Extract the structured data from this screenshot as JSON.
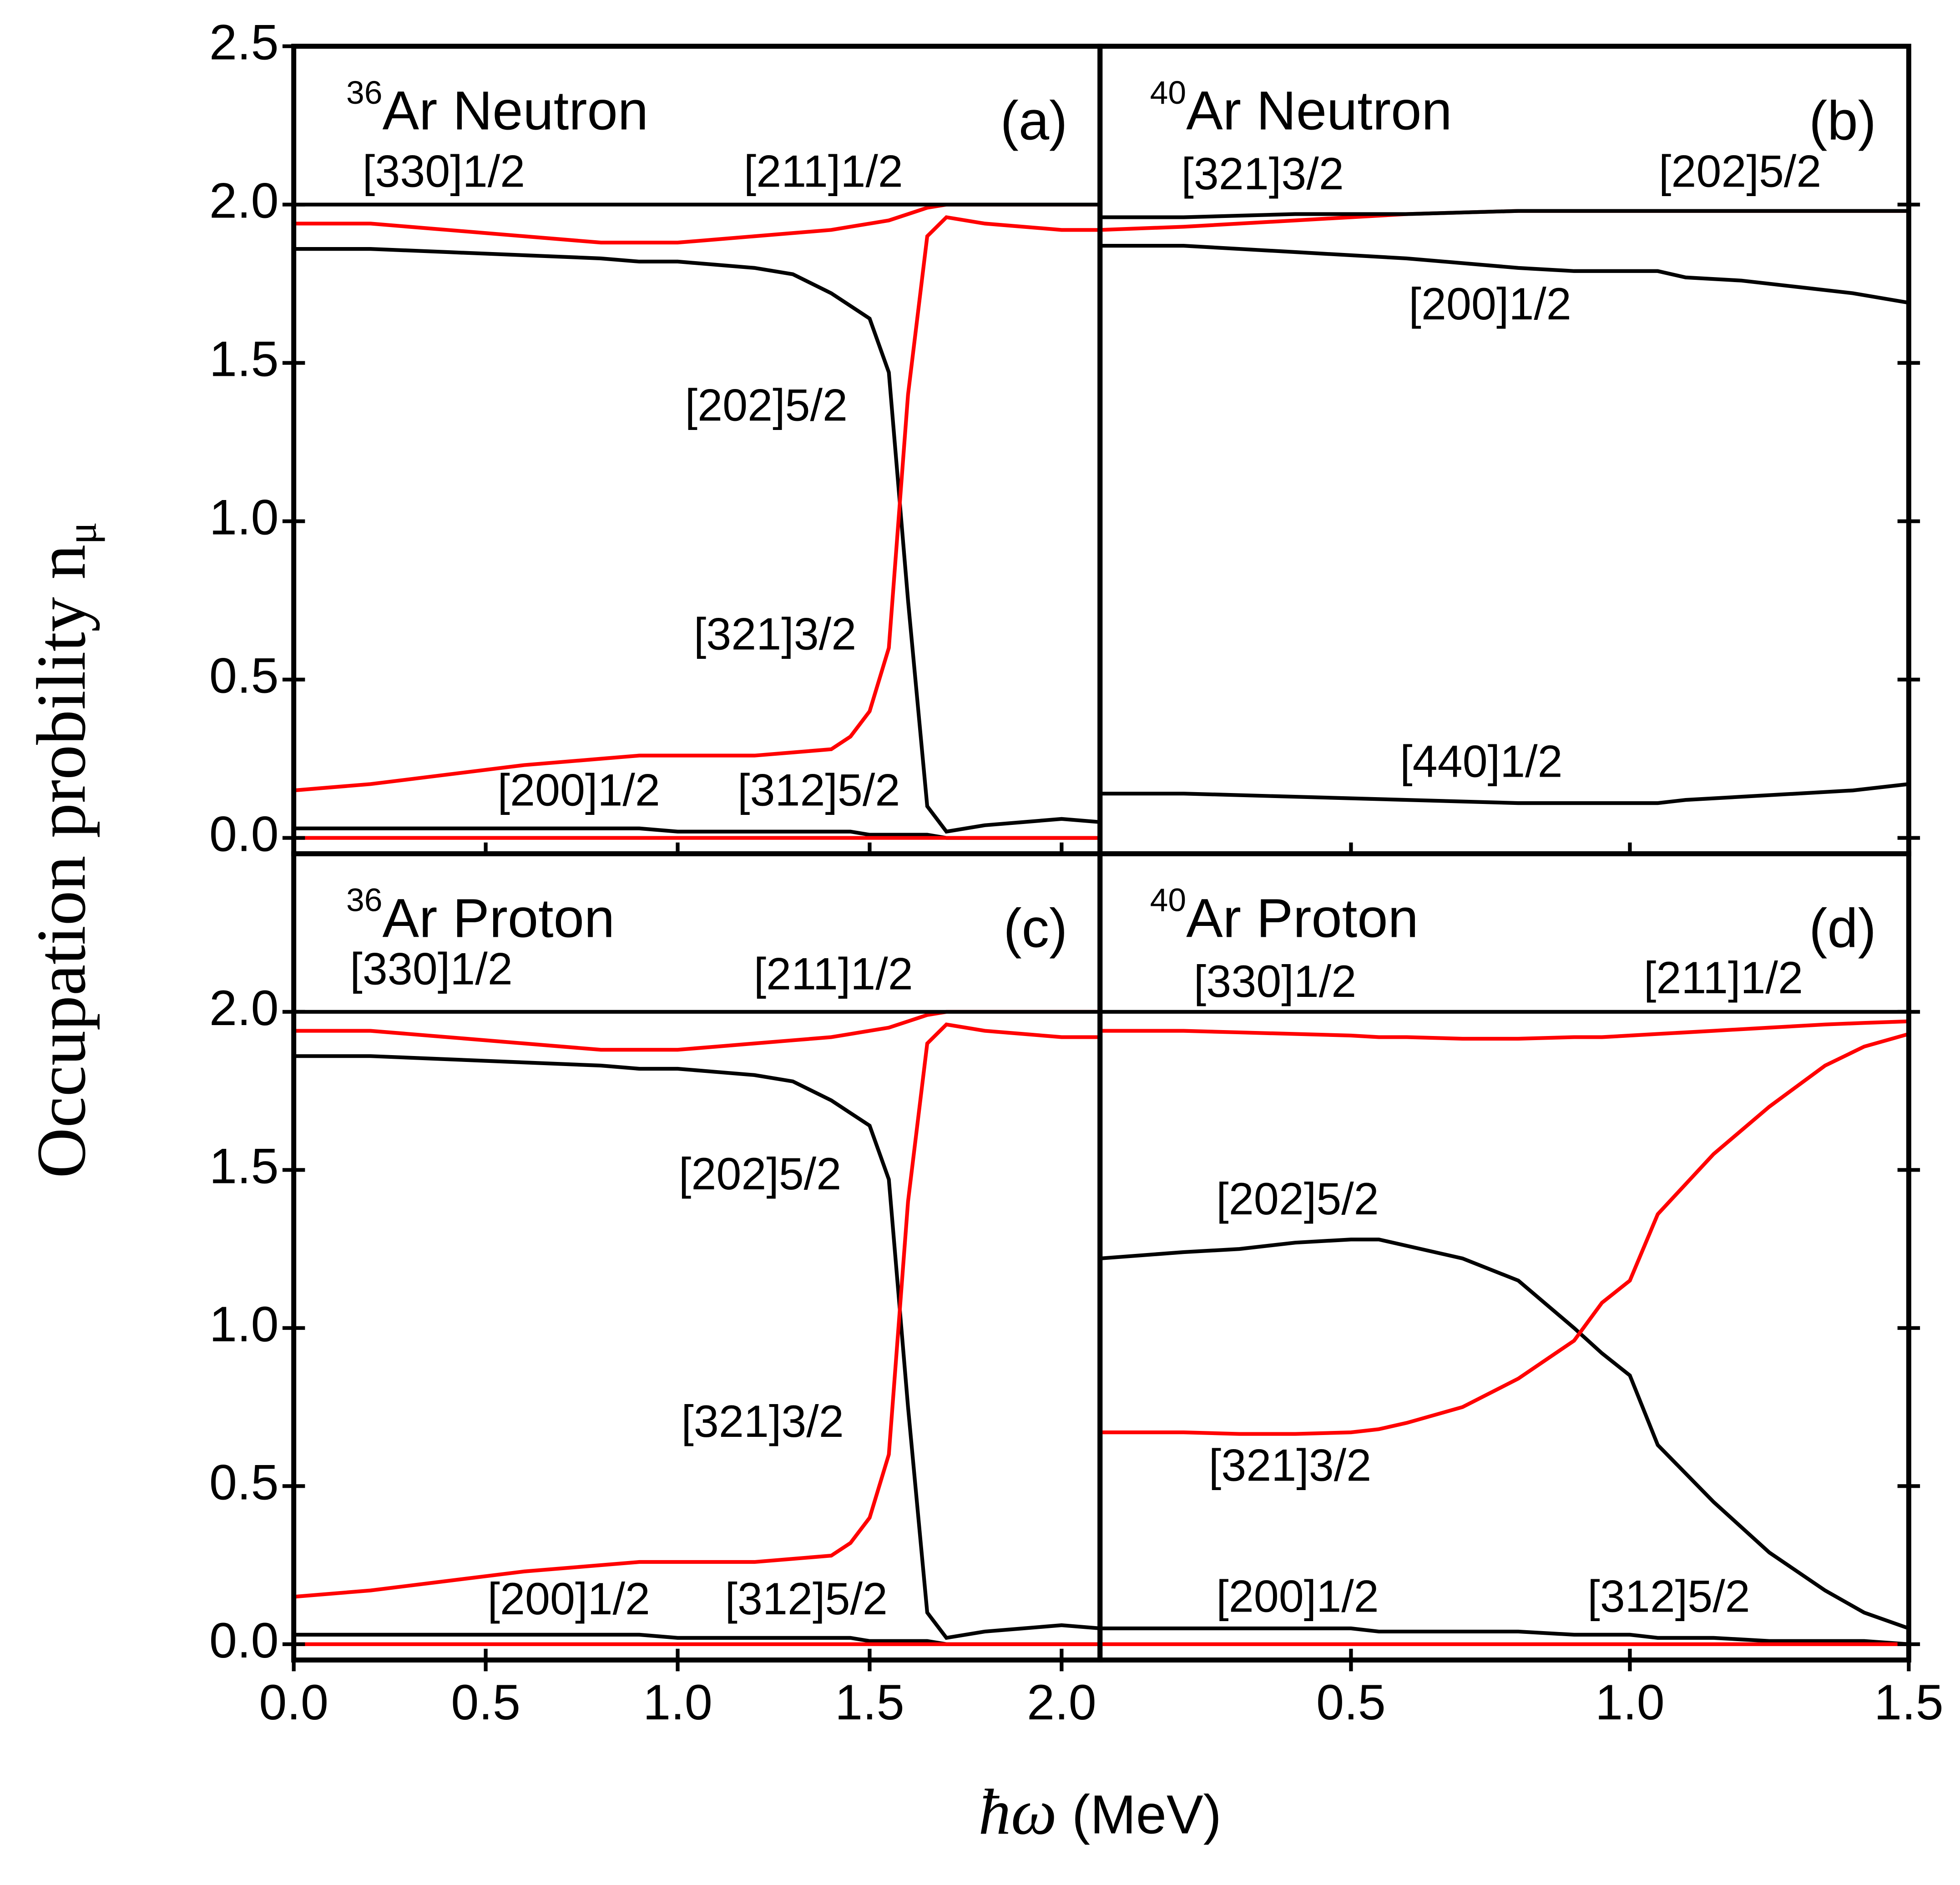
{
  "ylabel": "Occupation probility n",
  "ylabel_sub": "μ",
  "xlabel_symbol": "ħω",
  "xlabel_unit": "(MeV)",
  "chart_data": [
    {
      "type": "line",
      "title_sup": "36",
      "title": "Ar Neutron",
      "panel": "(a)",
      "xlim": [
        0,
        2.1
      ],
      "ylim": [
        -0.05,
        2.5
      ],
      "xticks": [
        0,
        0.5,
        1,
        1.5,
        2
      ],
      "yticks": [
        {
          "value": 0,
          "label": "0.0"
        },
        {
          "value": 0.5,
          "label": "0.5"
        },
        {
          "value": 1,
          "label": "1.0"
        },
        {
          "value": 1.5,
          "label": "1.5"
        },
        {
          "value": 2,
          "label": "2.0"
        },
        {
          "value": 2.5,
          "label": "2.5"
        }
      ],
      "x": [
        0,
        0.2,
        0.4,
        0.6,
        0.8,
        0.9,
        1.0,
        1.1,
        1.2,
        1.3,
        1.4,
        1.45,
        1.5,
        1.55,
        1.6,
        1.65,
        1.7,
        1.8,
        1.9,
        2.0,
        2.1
      ],
      "series": [
        {
          "name": "[330]1/2",
          "color": "#ff0000",
          "values": [
            1.94,
            1.94,
            1.92,
            1.9,
            1.88,
            1.88,
            1.88,
            1.89,
            1.9,
            1.91,
            1.92,
            1.93,
            1.94,
            1.95,
            1.97,
            1.99,
            2.0,
            2.0,
            2.0,
            2.0,
            2.0
          ]
        },
        {
          "name": "[211]1/2",
          "color": "#000000",
          "values": [
            2.0,
            2.0,
            2.0,
            2.0,
            2.0,
            2.0,
            2.0,
            2.0,
            2.0,
            2.0,
            2.0,
            2.0,
            2.0,
            2.0,
            2.0,
            2.0,
            2.0,
            2.0,
            2.0,
            2.0,
            2.0
          ]
        },
        {
          "name": "[202]5/2",
          "color": "#000000",
          "values": [
            1.86,
            1.86,
            1.85,
            1.84,
            1.83,
            1.82,
            1.82,
            1.81,
            1.8,
            1.78,
            1.72,
            1.68,
            1.64,
            1.47,
            0.75,
            0.1,
            0.02,
            0.04,
            0.05,
            0.06,
            0.05
          ]
        },
        {
          "name": "[321]3/2",
          "color": "#ff0000",
          "values": [
            0.15,
            0.17,
            0.2,
            0.23,
            0.25,
            0.26,
            0.26,
            0.26,
            0.26,
            0.27,
            0.28,
            0.32,
            0.4,
            0.6,
            1.4,
            1.9,
            1.96,
            1.94,
            1.93,
            1.92,
            1.92
          ]
        },
        {
          "name": "[200]1/2",
          "color": "#000000",
          "values": [
            0.03,
            0.03,
            0.03,
            0.03,
            0.03,
            0.03,
            0.02,
            0.02,
            0.02,
            0.02,
            0.02,
            0.02,
            0.01,
            0.01,
            0.01,
            0.01,
            0.0,
            0.0,
            0.0,
            0.0,
            0.0
          ]
        },
        {
          "name": "[312]5/2",
          "color": "#ff0000",
          "values": [
            0.0,
            0.0,
            0.0,
            0.0,
            0.0,
            0.0,
            0.0,
            0.0,
            0.0,
            0.0,
            0.0,
            0.0,
            0.0,
            0.0,
            0.0,
            0.0,
            0.0,
            0.0,
            0.0,
            0.0,
            0.0
          ]
        }
      ]
    },
    {
      "type": "line",
      "title_sup": "40",
      "title": "Ar Neutron",
      "panel": "(b)",
      "xlim": [
        0.05,
        1.5
      ],
      "ylim": [
        -0.05,
        2.5
      ],
      "xticks": [
        0.5,
        1,
        1.5
      ],
      "yticks": [
        0,
        0.5,
        1,
        1.5,
        2
      ],
      "x": [
        0.05,
        0.2,
        0.4,
        0.6,
        0.8,
        0.9,
        1.0,
        1.05,
        1.1,
        1.2,
        1.3,
        1.4,
        1.5
      ],
      "series": [
        {
          "name": "[321]3/2",
          "color": "#ff0000",
          "values": [
            1.92,
            1.93,
            1.95,
            1.97,
            1.98,
            1.98,
            1.98,
            1.98,
            1.98,
            1.98,
            1.98,
            1.98,
            1.98
          ]
        },
        {
          "name": "[202]5/2",
          "color": "#000000",
          "values": [
            1.96,
            1.96,
            1.97,
            1.97,
            1.98,
            1.98,
            1.98,
            1.98,
            1.98,
            1.98,
            1.98,
            1.98,
            1.98
          ]
        },
        {
          "name": "[200]1/2",
          "color": "#000000",
          "values": [
            1.87,
            1.87,
            1.85,
            1.83,
            1.8,
            1.79,
            1.79,
            1.79,
            1.77,
            1.76,
            1.74,
            1.72,
            1.69
          ]
        },
        {
          "name": "[440]1/2",
          "color": "#000000",
          "values": [
            0.14,
            0.14,
            0.13,
            0.12,
            0.11,
            0.11,
            0.11,
            0.11,
            0.12,
            0.13,
            0.14,
            0.15,
            0.17
          ]
        }
      ]
    },
    {
      "type": "line",
      "title_sup": "36",
      "title": "Ar Proton",
      "panel": "(c)",
      "xlim": [
        0,
        2.1
      ],
      "ylim": [
        -0.05,
        2.5
      ],
      "xticks": [
        {
          "value": 0,
          "label": "0.0"
        },
        {
          "value": 0.5,
          "label": "0.5"
        },
        {
          "value": 1,
          "label": "1.0"
        },
        {
          "value": 1.5,
          "label": "1.5"
        },
        {
          "value": 2,
          "label": "2.0"
        }
      ],
      "yticks": [
        {
          "value": 0,
          "label": "0.0"
        },
        {
          "value": 0.5,
          "label": "0.5"
        },
        {
          "value": 1,
          "label": "1.0"
        },
        {
          "value": 1.5,
          "label": "1.5"
        },
        {
          "value": 2,
          "label": "2.0"
        }
      ],
      "x": [
        0,
        0.2,
        0.4,
        0.6,
        0.8,
        0.9,
        1.0,
        1.1,
        1.2,
        1.3,
        1.4,
        1.45,
        1.5,
        1.55,
        1.6,
        1.65,
        1.7,
        1.8,
        1.9,
        2.0,
        2.1
      ],
      "series": [
        {
          "name": "[330]1/2",
          "color": "#ff0000",
          "values": [
            1.94,
            1.94,
            1.92,
            1.9,
            1.88,
            1.88,
            1.88,
            1.89,
            1.9,
            1.91,
            1.92,
            1.93,
            1.94,
            1.95,
            1.97,
            1.99,
            2.0,
            2.0,
            2.0,
            2.0,
            2.0
          ]
        },
        {
          "name": "[211]1/2",
          "color": "#000000",
          "values": [
            2.0,
            2.0,
            2.0,
            2.0,
            2.0,
            2.0,
            2.0,
            2.0,
            2.0,
            2.0,
            2.0,
            2.0,
            2.0,
            2.0,
            2.0,
            2.0,
            2.0,
            2.0,
            2.0,
            2.0,
            2.0
          ]
        },
        {
          "name": "[202]5/2",
          "color": "#000000",
          "values": [
            1.86,
            1.86,
            1.85,
            1.84,
            1.83,
            1.82,
            1.82,
            1.81,
            1.8,
            1.78,
            1.72,
            1.68,
            1.64,
            1.47,
            0.75,
            0.1,
            0.02,
            0.04,
            0.05,
            0.06,
            0.05
          ]
        },
        {
          "name": "[321]3/2",
          "color": "#ff0000",
          "values": [
            0.15,
            0.17,
            0.2,
            0.23,
            0.25,
            0.26,
            0.26,
            0.26,
            0.26,
            0.27,
            0.28,
            0.32,
            0.4,
            0.6,
            1.4,
            1.9,
            1.96,
            1.94,
            1.93,
            1.92,
            1.92
          ]
        },
        {
          "name": "[200]1/2",
          "color": "#000000",
          "values": [
            0.03,
            0.03,
            0.03,
            0.03,
            0.03,
            0.03,
            0.02,
            0.02,
            0.02,
            0.02,
            0.02,
            0.02,
            0.01,
            0.01,
            0.01,
            0.01,
            0.0,
            0.0,
            0.0,
            0.0,
            0.0
          ]
        },
        {
          "name": "[312]5/2",
          "color": "#ff0000",
          "values": [
            0.0,
            0.0,
            0.0,
            0.0,
            0.0,
            0.0,
            0.0,
            0.0,
            0.0,
            0.0,
            0.0,
            0.0,
            0.0,
            0.0,
            0.0,
            0.0,
            0.0,
            0.0,
            0.0,
            0.0,
            0.0
          ]
        }
      ]
    },
    {
      "type": "line",
      "title_sup": "40",
      "title": "Ar Proton",
      "panel": "(d)",
      "xlim": [
        0.05,
        1.5
      ],
      "ylim": [
        -0.05,
        2.5
      ],
      "xticks": [
        {
          "value": 0.5,
          "label": "0.5"
        },
        {
          "value": 1,
          "label": "1.0"
        },
        {
          "value": 1.5,
          "label": "1.5"
        }
      ],
      "yticks": [
        0,
        0.5,
        1,
        1.5,
        2
      ],
      "x": [
        0.05,
        0.2,
        0.3,
        0.4,
        0.5,
        0.55,
        0.6,
        0.7,
        0.8,
        0.9,
        0.95,
        1.0,
        1.05,
        1.15,
        1.25,
        1.35,
        1.42,
        1.5
      ],
      "series": [
        {
          "name": "[330]1/2",
          "color": "#ff0000",
          "values": [
            1.94,
            1.94,
            1.935,
            1.93,
            1.925,
            1.92,
            1.92,
            1.915,
            1.915,
            1.92,
            1.92,
            1.925,
            1.93,
            1.94,
            1.95,
            1.96,
            1.965,
            1.97
          ]
        },
        {
          "name": "[211]1/2",
          "color": "#000000",
          "values": [
            2.0,
            2.0,
            2.0,
            2.0,
            2.0,
            2.0,
            2.0,
            2.0,
            2.0,
            2.0,
            2.0,
            2.0,
            2.0,
            2.0,
            2.0,
            2.0,
            2.0,
            2.0
          ]
        },
        {
          "name": "[202]5/2",
          "color": "#000000",
          "values": [
            1.22,
            1.24,
            1.25,
            1.27,
            1.28,
            1.28,
            1.26,
            1.22,
            1.15,
            1.0,
            0.92,
            0.85,
            0.63,
            0.45,
            0.29,
            0.17,
            0.1,
            0.05
          ]
        },
        {
          "name": "[321]3/2",
          "color": "#ff0000",
          "values": [
            0.67,
            0.67,
            0.665,
            0.665,
            0.67,
            0.68,
            0.7,
            0.75,
            0.84,
            0.96,
            1.08,
            1.15,
            1.36,
            1.55,
            1.7,
            1.83,
            1.89,
            1.93
          ]
        },
        {
          "name": "[200]1/2",
          "color": "#000000",
          "values": [
            0.05,
            0.05,
            0.05,
            0.05,
            0.05,
            0.04,
            0.04,
            0.04,
            0.04,
            0.03,
            0.03,
            0.03,
            0.02,
            0.02,
            0.01,
            0.01,
            0.01,
            0.0
          ]
        },
        {
          "name": "[312]5/2",
          "color": "#ff0000",
          "values": [
            0.0,
            0.0,
            0.0,
            0.0,
            0.0,
            0.0,
            0.0,
            0.0,
            0.0,
            0.0,
            0.0,
            0.0,
            0.0,
            0.0,
            0.0,
            0.0,
            0.0,
            0.0
          ]
        }
      ]
    }
  ]
}
